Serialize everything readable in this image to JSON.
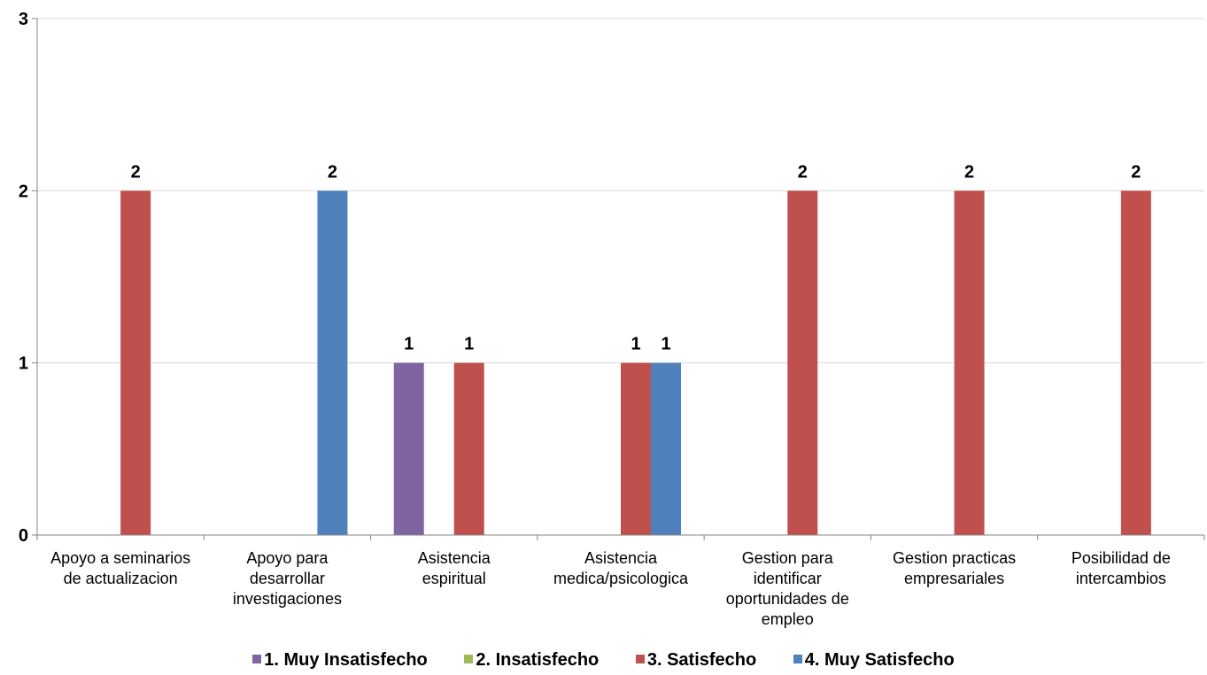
{
  "chart_data": {
    "type": "bar",
    "title": "",
    "xlabel": "",
    "ylabel": "",
    "ylim": [
      0,
      3
    ],
    "yticks": [
      "0",
      "1",
      "2",
      "3"
    ],
    "grid": true,
    "legend_position": "bottom",
    "categories": [
      [
        "Apoyo a seminarios",
        "de actualizacion"
      ],
      [
        "Apoyo para",
        "desarrollar",
        "investigaciones"
      ],
      [
        "Asistencia",
        "espiritual"
      ],
      [
        "Asistencia",
        "medica/psicologica"
      ],
      [
        "Gestion para",
        "identificar",
        "oportunidades de",
        "empleo"
      ],
      [
        "Gestion practicas",
        "empresariales"
      ],
      [
        "Posibilidad de",
        "intercambios"
      ]
    ],
    "series": [
      {
        "name": "1. Muy Insatisfecho",
        "color": "#8064A2",
        "values": [
          null,
          null,
          1,
          null,
          null,
          null,
          null
        ]
      },
      {
        "name": "2. Insatisfecho",
        "color": "#9BBB59",
        "values": [
          null,
          null,
          null,
          null,
          null,
          null,
          null
        ]
      },
      {
        "name": "3. Satisfecho",
        "color": "#C0504D",
        "values": [
          2,
          null,
          1,
          1,
          2,
          2,
          2
        ]
      },
      {
        "name": "4. Muy Satisfecho",
        "color": "#4F81BD",
        "values": [
          null,
          2,
          null,
          1,
          null,
          null,
          null
        ]
      }
    ],
    "data_labels": [
      {
        "category": 0,
        "series": 2,
        "text": "2"
      },
      {
        "category": 1,
        "series": 3,
        "text": "2"
      },
      {
        "category": 2,
        "series": 0,
        "text": "1"
      },
      {
        "category": 2,
        "series": 2,
        "text": "1"
      },
      {
        "category": 3,
        "series": 2,
        "text": "1"
      },
      {
        "category": 3,
        "series": 3,
        "text": "1"
      },
      {
        "category": 4,
        "series": 2,
        "text": "2"
      },
      {
        "category": 5,
        "series": 2,
        "text": "2"
      },
      {
        "category": 6,
        "series": 2,
        "text": "2"
      }
    ]
  }
}
